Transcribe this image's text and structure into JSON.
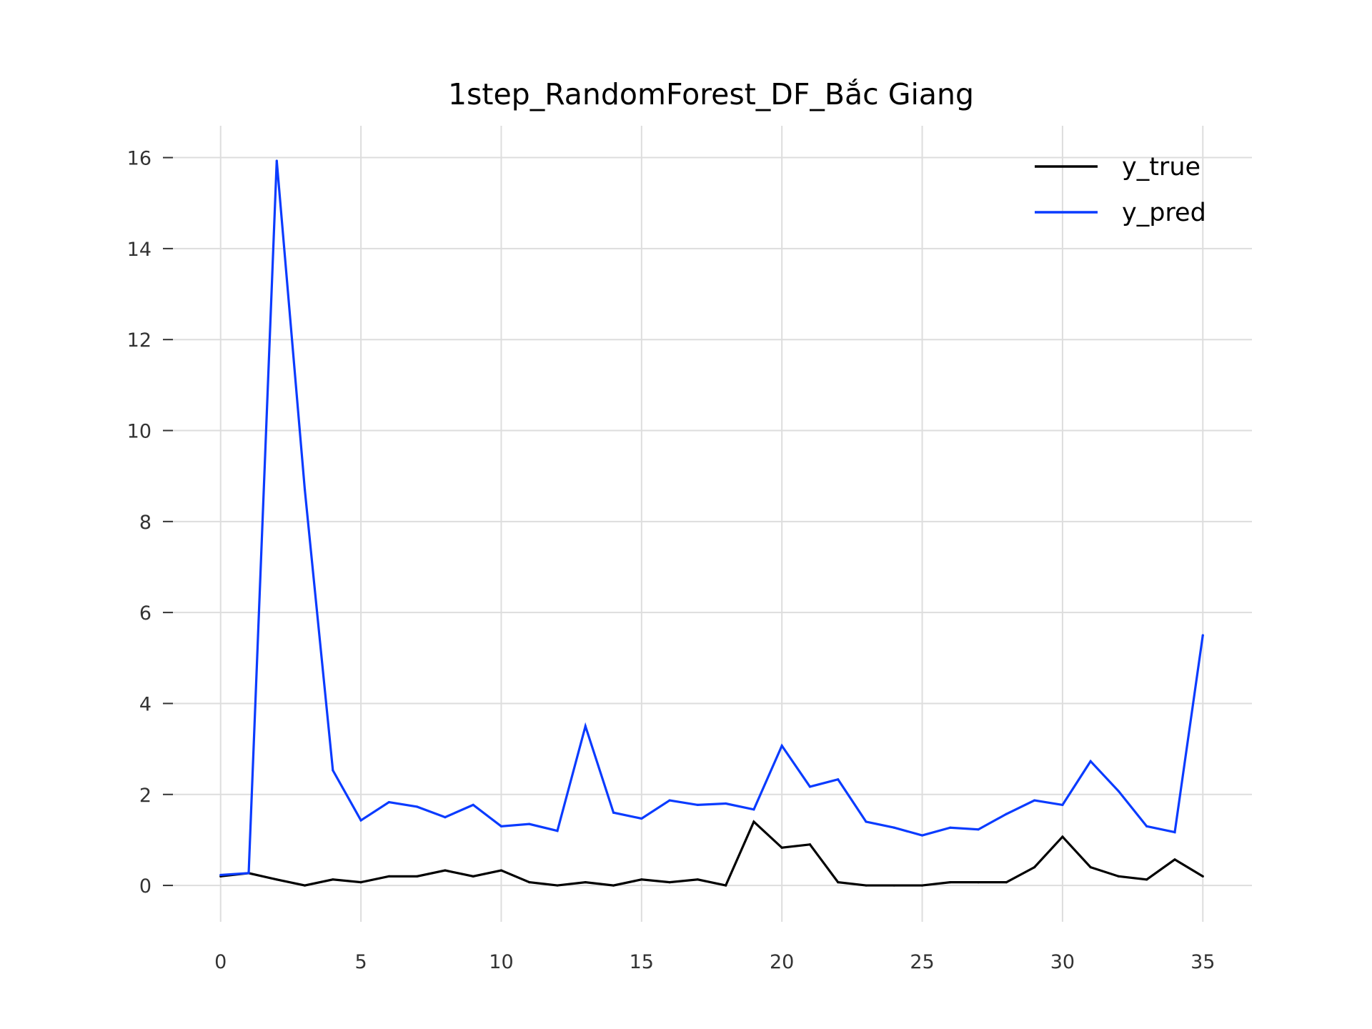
{
  "chart_data": {
    "type": "line",
    "title": "1step_RandomForest_DF_Bắc Giang",
    "xlabel": "",
    "ylabel": "",
    "xlim": [
      -1.75,
      36.75
    ],
    "ylim": [
      -0.8,
      16.7
    ],
    "xticks": [
      0,
      5,
      10,
      15,
      20,
      25,
      30,
      35
    ],
    "yticks": [
      0,
      2,
      4,
      6,
      8,
      10,
      12,
      14,
      16
    ],
    "grid": true,
    "legend_position": "top-right",
    "x": [
      0,
      1,
      2,
      3,
      4,
      5,
      6,
      7,
      8,
      9,
      10,
      11,
      12,
      13,
      14,
      15,
      16,
      17,
      18,
      19,
      20,
      21,
      22,
      23,
      24,
      25,
      26,
      27,
      28,
      29,
      30,
      31,
      32,
      33,
      34,
      35
    ],
    "series": [
      {
        "name": "y_true",
        "color": "#000000",
        "values": [
          0.2,
          0.27,
          0.13,
          0.0,
          0.13,
          0.07,
          0.2,
          0.2,
          0.33,
          0.2,
          0.33,
          0.07,
          0.0,
          0.07,
          0.0,
          0.13,
          0.07,
          0.13,
          0.0,
          1.4,
          0.83,
          0.9,
          0.07,
          0.0,
          0.0,
          0.0,
          0.07,
          0.07,
          0.07,
          0.4,
          1.07,
          0.4,
          0.2,
          0.13,
          0.57,
          0.2
        ]
      },
      {
        "name": "y_pred",
        "color": "#0a3bff",
        "values": [
          0.23,
          0.27,
          15.93,
          8.7,
          2.53,
          1.43,
          1.83,
          1.73,
          1.5,
          1.77,
          1.3,
          1.35,
          1.2,
          3.5,
          1.6,
          1.47,
          1.87,
          1.77,
          1.8,
          1.67,
          3.07,
          2.17,
          2.33,
          1.4,
          1.27,
          1.1,
          1.27,
          1.23,
          1.57,
          1.87,
          1.77,
          2.73,
          2.07,
          1.3,
          1.17,
          5.5
        ]
      }
    ]
  }
}
